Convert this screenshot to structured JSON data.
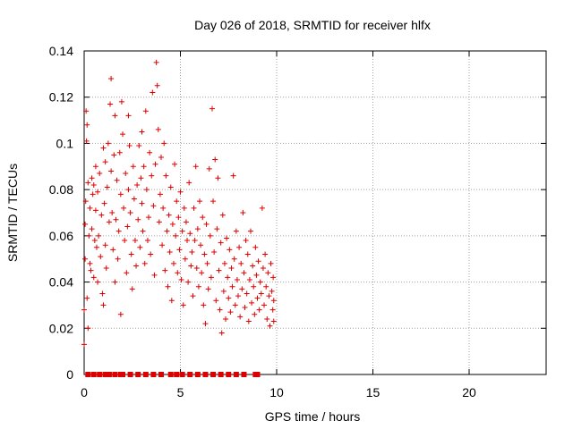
{
  "colors": {
    "series": "#dd0000",
    "grid": "#a0a0a0",
    "axis": "#000000"
  },
  "chart_data": {
    "type": "scatter",
    "title": "Day 026 of 2018, SRMTID for receiver hlfx",
    "xlabel": "GPS time / hours",
    "ylabel": "SRMTID / TECUs",
    "xlim": [
      0,
      24
    ],
    "ylim": [
      0,
      0.14
    ],
    "xticks": [
      0,
      5,
      10,
      15,
      20
    ],
    "xtick_labels": [
      "0",
      "5",
      "10",
      "15",
      "20"
    ],
    "yticks": [
      0,
      0.02,
      0.04,
      0.06,
      0.08,
      0.1,
      0.12,
      0.14
    ],
    "ytick_labels": [
      "0",
      "0.02",
      "0.04",
      "0.06",
      "0.08",
      "0.1",
      "0.12",
      "0.14"
    ],
    "grid": true,
    "marker": "plus",
    "series": [
      {
        "points": [
          [
            0.0,
            0.013
          ],
          [
            0.0,
            0.028
          ],
          [
            0.05,
            0.05
          ],
          [
            0.05,
            0.065
          ],
          [
            0.08,
            0.075
          ],
          [
            0.1,
            0.114
          ],
          [
            0.12,
            0.101
          ],
          [
            0.15,
            0.108
          ],
          [
            0.15,
            0.033
          ],
          [
            0.2,
            0.02
          ],
          [
            0.2,
            0.083
          ],
          [
            0.25,
            0.06
          ],
          [
            0.3,
            0.072
          ],
          [
            0.3,
            0.048
          ],
          [
            0.35,
            0.045
          ],
          [
            0.4,
            0.063
          ],
          [
            0.4,
            0.085
          ],
          [
            0.45,
            0.078
          ],
          [
            0.5,
            0.082
          ],
          [
            0.5,
            0.042
          ],
          [
            0.55,
            0.058
          ],
          [
            0.6,
            0.09
          ],
          [
            0.6,
            0.071
          ],
          [
            0.65,
            0.055
          ],
          [
            0.7,
            0.079
          ],
          [
            0.7,
            0.04
          ],
          [
            0.75,
            0.06
          ],
          [
            0.8,
            0.087
          ],
          [
            0.85,
            0.051
          ],
          [
            0.9,
            0.069
          ],
          [
            0.95,
            0.035
          ],
          [
            1.0,
            0.098
          ],
          [
            1.0,
            0.03
          ],
          [
            1.05,
            0.074
          ],
          [
            1.1,
            0.092
          ],
          [
            1.1,
            0.056
          ],
          [
            1.15,
            0.046
          ],
          [
            1.2,
            0.081
          ],
          [
            1.25,
            0.1
          ],
          [
            1.3,
            0.066
          ],
          [
            1.35,
            0.117
          ],
          [
            1.4,
            0.128
          ],
          [
            1.4,
            0.088
          ],
          [
            1.45,
            0.07
          ],
          [
            1.5,
            0.054
          ],
          [
            1.55,
            0.095
          ],
          [
            1.6,
            0.112
          ],
          [
            1.6,
            0.04
          ],
          [
            1.65,
            0.067
          ],
          [
            1.7,
            0.084
          ],
          [
            1.75,
            0.05
          ],
          [
            1.8,
            0.062
          ],
          [
            1.85,
            0.096
          ],
          [
            1.9,
            0.026
          ],
          [
            1.9,
            0.078
          ],
          [
            1.95,
            0.118
          ],
          [
            2.0,
            0.104
          ],
          [
            2.05,
            0.072
          ],
          [
            2.1,
            0.058
          ],
          [
            2.15,
            0.087
          ],
          [
            2.2,
            0.044
          ],
          [
            2.25,
            0.064
          ],
          [
            2.3,
            0.112
          ],
          [
            2.3,
            0.08
          ],
          [
            2.35,
            0.099
          ],
          [
            2.4,
            0.07
          ],
          [
            2.45,
            0.052
          ],
          [
            2.5,
            0.037
          ],
          [
            2.55,
            0.09
          ],
          [
            2.6,
            0.076
          ],
          [
            2.65,
            0.058
          ],
          [
            2.7,
            0.047
          ],
          [
            2.75,
            0.082
          ],
          [
            2.8,
            0.067
          ],
          [
            2.85,
            0.099
          ],
          [
            2.9,
            0.055
          ],
          [
            2.95,
            0.085
          ],
          [
            3.0,
            0.074
          ],
          [
            3.0,
            0.105
          ],
          [
            3.05,
            0.062
          ],
          [
            3.1,
            0.09
          ],
          [
            3.15,
            0.048
          ],
          [
            3.2,
            0.114
          ],
          [
            3.25,
            0.08
          ],
          [
            3.3,
            0.058
          ],
          [
            3.35,
            0.068
          ],
          [
            3.4,
            0.096
          ],
          [
            3.45,
            0.052
          ],
          [
            3.5,
            0.086
          ],
          [
            3.55,
            0.122
          ],
          [
            3.6,
            0.073
          ],
          [
            3.65,
            0.043
          ],
          [
            3.7,
            0.091
          ],
          [
            3.75,
            0.135
          ],
          [
            3.8,
            0.125
          ],
          [
            3.85,
            0.106
          ],
          [
            3.9,
            0.066
          ],
          [
            3.95,
            0.078
          ],
          [
            4.0,
            0.094
          ],
          [
            4.05,
            0.056
          ],
          [
            4.1,
            0.072
          ],
          [
            4.15,
            0.1
          ],
          [
            4.2,
            0.045
          ],
          [
            4.25,
            0.086
          ],
          [
            4.3,
            0.062
          ],
          [
            4.35,
            0.038
          ],
          [
            4.4,
            0.069
          ],
          [
            4.45,
            0.053
          ],
          [
            4.5,
            0.081
          ],
          [
            4.55,
            0.032
          ],
          [
            4.6,
            0.065
          ],
          [
            4.65,
            0.048
          ],
          [
            4.7,
            0.091
          ],
          [
            4.75,
            0.06
          ],
          [
            4.8,
            0.075
          ],
          [
            4.85,
            0.044
          ],
          [
            4.9,
            0.068
          ],
          [
            4.95,
            0.054
          ],
          [
            5.0,
            0.079
          ],
          [
            5.05,
            0.041
          ],
          [
            5.1,
            0.062
          ],
          [
            5.15,
            0.03
          ],
          [
            5.2,
            0.072
          ],
          [
            5.25,
            0.05
          ],
          [
            5.3,
            0.066
          ],
          [
            5.35,
            0.058
          ],
          [
            5.4,
            0.04
          ],
          [
            5.45,
            0.083
          ],
          [
            5.5,
            0.061
          ],
          [
            5.55,
            0.047
          ],
          [
            5.6,
            0.053
          ],
          [
            5.65,
            0.034
          ],
          [
            5.7,
            0.072
          ],
          [
            5.75,
            0.058
          ],
          [
            5.8,
            0.09
          ],
          [
            5.85,
            0.046
          ],
          [
            5.9,
            0.063
          ],
          [
            5.95,
            0.038
          ],
          [
            6.0,
            0.075
          ],
          [
            6.05,
            0.056
          ],
          [
            6.1,
            0.044
          ],
          [
            6.15,
            0.068
          ],
          [
            6.2,
            0.03
          ],
          [
            6.25,
            0.052
          ],
          [
            6.3,
            0.022
          ],
          [
            6.35,
            0.065
          ],
          [
            6.4,
            0.048
          ],
          [
            6.45,
            0.037
          ],
          [
            6.5,
            0.089
          ],
          [
            6.55,
            0.06
          ],
          [
            6.6,
            0.042
          ],
          [
            6.65,
            0.115
          ],
          [
            6.7,
            0.075
          ],
          [
            6.75,
            0.053
          ],
          [
            6.8,
            0.093
          ],
          [
            6.85,
            0.032
          ],
          [
            6.9,
            0.063
          ],
          [
            6.95,
            0.085
          ],
          [
            7.0,
            0.045
          ],
          [
            7.05,
            0.028
          ],
          [
            7.1,
            0.057
          ],
          [
            7.15,
            0.018
          ],
          [
            7.2,
            0.069
          ],
          [
            7.25,
            0.036
          ],
          [
            7.3,
            0.048
          ],
          [
            7.35,
            0.024
          ],
          [
            7.4,
            0.059
          ],
          [
            7.45,
            0.042
          ],
          [
            7.5,
            0.033
          ],
          [
            7.55,
            0.054
          ],
          [
            7.6,
            0.027
          ],
          [
            7.65,
            0.046
          ],
          [
            7.7,
            0.038
          ],
          [
            7.75,
            0.086
          ],
          [
            7.8,
            0.05
          ],
          [
            7.85,
            0.03
          ],
          [
            7.9,
            0.062
          ],
          [
            7.95,
            0.041
          ],
          [
            8.0,
            0.034
          ],
          [
            8.05,
            0.055
          ],
          [
            8.1,
            0.025
          ],
          [
            8.15,
            0.048
          ],
          [
            8.2,
            0.037
          ],
          [
            8.25,
            0.07
          ],
          [
            8.3,
            0.044
          ],
          [
            8.35,
            0.029
          ],
          [
            8.4,
            0.058
          ],
          [
            8.45,
            0.035
          ],
          [
            8.5,
            0.052
          ],
          [
            8.55,
            0.023
          ],
          [
            8.6,
            0.041
          ],
          [
            8.65,
            0.062
          ],
          [
            8.7,
            0.031
          ],
          [
            8.75,
            0.047
          ],
          [
            8.8,
            0.038
          ],
          [
            8.85,
            0.026
          ],
          [
            8.9,
            0.055
          ],
          [
            8.95,
            0.043
          ],
          [
            9.0,
            0.033
          ],
          [
            9.05,
            0.049
          ],
          [
            9.1,
            0.028
          ],
          [
            9.15,
            0.04
          ],
          [
            9.2,
            0.035
          ],
          [
            9.25,
            0.072
          ],
          [
            9.3,
            0.046
          ],
          [
            9.35,
            0.03
          ],
          [
            9.4,
            0.052
          ],
          [
            9.45,
            0.038
          ],
          [
            9.5,
            0.024
          ],
          [
            9.55,
            0.044
          ],
          [
            9.6,
            0.034
          ],
          [
            9.65,
            0.021
          ],
          [
            9.7,
            0.048
          ],
          [
            9.75,
            0.036
          ],
          [
            9.8,
            0.028
          ],
          [
            9.82,
            0.042
          ],
          [
            9.85,
            0.023
          ],
          [
            9.85,
            0.032
          ]
        ],
        "zero_points": [
          0.2,
          0.5,
          0.8,
          1.1,
          1.3,
          1.6,
          1.9,
          2.0,
          2.4,
          2.8,
          3.2,
          3.6,
          4.0,
          4.5,
          4.8,
          5.1,
          5.5,
          5.9,
          6.3,
          6.7,
          7.1,
          7.5,
          7.9,
          8.3,
          8.9,
          9.0
        ]
      }
    ]
  }
}
